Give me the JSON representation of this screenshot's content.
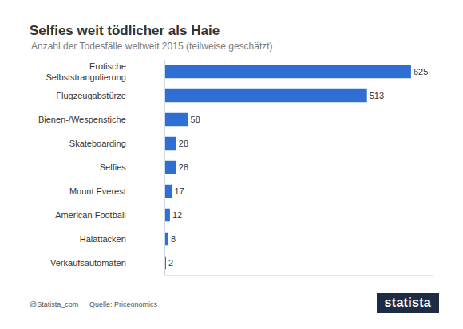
{
  "chart_data": {
    "type": "bar",
    "orientation": "horizontal",
    "title": "Selfies weit tödlicher als Haie",
    "subtitle": "Anzahl der Todesfälle weltweit 2015 (teilweise geschätzt)",
    "categories": [
      "Erotische Selbststrangulierung",
      "Flugzeugabstürze",
      "Bienen-/Wespenstiche",
      "Skateboarding",
      "Selfies",
      "Mount Everest",
      "American Football",
      "Haiattacken",
      "Verkaufsautomaten"
    ],
    "values": [
      625,
      513,
      58,
      28,
      28,
      17,
      12,
      8,
      2
    ],
    "color": "#2f6fd3",
    "data_labels": true,
    "tick_labels": "y",
    "grid": false,
    "xlim": [
      0,
      680
    ],
    "xticks": [],
    "source": "Quelle: Priceonomics",
    "credit": "@Statista_com",
    "brand": "statista"
  }
}
